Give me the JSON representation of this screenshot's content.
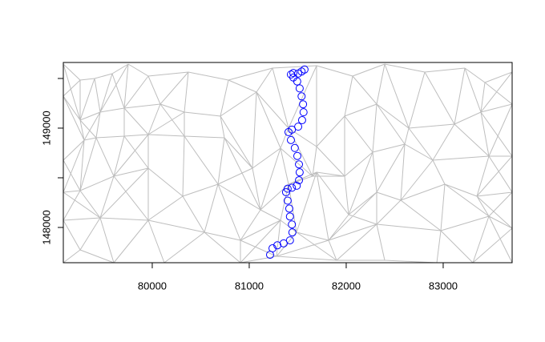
{
  "chart_data": {
    "type": "scatter",
    "x": [
      81215,
      81240,
      81290,
      81355,
      81420,
      81445,
      81440,
      81420,
      81413,
      81396,
      81380,
      81396,
      81440,
      81490,
      81513,
      81520,
      81513,
      81496,
      81470,
      81430,
      81405,
      81440,
      81505,
      81545,
      81560,
      81555,
      81540,
      81520,
      81495,
      81455,
      81430,
      81455,
      81505,
      81540,
      81570
    ],
    "y": [
      147725,
      147790,
      147820,
      147840,
      147870,
      147950,
      148030,
      148110,
      148190,
      148270,
      148355,
      148390,
      148400,
      148420,
      148475,
      148555,
      148635,
      148720,
      148800,
      148880,
      148960,
      148985,
      149015,
      149080,
      149160,
      149240,
      149320,
      149400,
      149470,
      149510,
      149540,
      149555,
      149550,
      149570,
      149590
    ],
    "color": "#0000ff",
    "xlim": [
      79083,
      83711
    ],
    "ylim": [
      147645,
      149661
    ],
    "xticks": [
      80000,
      81000,
      82000,
      83000
    ],
    "yticks": [
      {
        "value": 148000,
        "label": "148000"
      },
      {
        "value": 148500,
        "label": null
      },
      {
        "value": 149000,
        "label": "149000"
      },
      {
        "value": 149500,
        "label": null
      }
    ]
  }
}
